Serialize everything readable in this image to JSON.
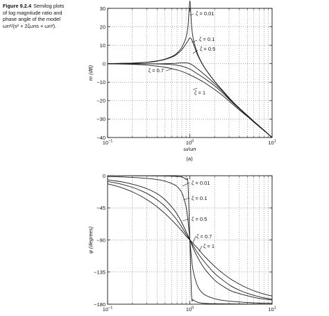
{
  "caption": {
    "figure": "Figure 9.2.4",
    "line1": "Semilog plots",
    "line2": "of log magnitude ratio and",
    "line3": "phase angle of the model",
    "line4": "ωn²/(s² + 2ζωns + ωn²)."
  },
  "chart_data": [
    {
      "type": "line",
      "panel_label": "(a)",
      "xlabel": "ω/ωn",
      "ylabel": "m (dB)",
      "x_scale": "log",
      "xlim": [
        0.1,
        10
      ],
      "ylim": [
        -40,
        30
      ],
      "x_ticks": [
        {
          "value": 0.1,
          "base": "10",
          "exp": "−1"
        },
        {
          "value": 1,
          "base": "10",
          "exp": "0"
        },
        {
          "value": 10,
          "base": "10",
          "exp": "1"
        }
      ],
      "y_ticks": [
        30,
        20,
        10,
        0,
        -10,
        -20,
        -30,
        -40
      ],
      "y_tick_labels": [
        "30",
        "20",
        "10",
        "0",
        "−10",
        "−20",
        "−30",
        "−40"
      ],
      "grid": "dotted",
      "x": [
        0.1,
        0.126,
        0.158,
        0.2,
        0.251,
        0.316,
        0.398,
        0.5,
        0.631,
        0.7,
        0.8,
        0.9,
        0.95,
        1.0,
        1.05,
        1.1,
        1.25,
        1.5,
        2.0,
        2.5,
        3.16,
        4.0,
        5.0,
        6.31,
        7.94,
        10.0
      ],
      "series": [
        {
          "name": "ζ = 0.01",
          "values": [
            0.09,
            0.14,
            0.22,
            0.35,
            0.56,
            0.91,
            1.5,
            2.5,
            4.3,
            5.8,
            8.9,
            14.4,
            20.1,
            33.98,
            20.8,
            13.6,
            5.1,
            -1.9,
            -9.5,
            -14.5,
            -19.6,
            -24.1,
            -28.0,
            -32.1,
            -36.0,
            -40.0
          ]
        },
        {
          "name": "ζ = 0.1",
          "values": [
            0.08,
            0.12,
            0.19,
            0.31,
            0.5,
            0.81,
            1.35,
            2.3,
            3.9,
            5.2,
            7.6,
            10.8,
            12.5,
            13.98,
            13.2,
            11.0,
            4.5,
            -2.0,
            -9.6,
            -14.5,
            -19.6,
            -24.1,
            -28.0,
            -32.1,
            -36.0,
            -40.0
          ]
        },
        {
          "name": "ζ = 0.5",
          "values": [
            0.0,
            -0.01,
            -0.01,
            -0.01,
            -0.02,
            -0.02,
            -0.02,
            0.0,
            0.15,
            0.3,
            0.47,
            0.48,
            0.35,
            0.0,
            -0.5,
            -1.0,
            -2.9,
            -5.8,
            -10.8,
            -15.0,
            -19.9,
            -24.2,
            -28.1,
            -32.1,
            -36.0,
            -40.0
          ]
        },
        {
          "name": "ζ = 0.7",
          "values": [
            -0.0,
            -0.0,
            -0.0,
            -0.01,
            -0.02,
            -0.05,
            -0.11,
            -0.24,
            -0.57,
            -0.84,
            -1.35,
            -2.1,
            -2.5,
            -2.92,
            -3.4,
            -4.0,
            -5.6,
            -7.9,
            -12.0,
            -15.8,
            -20.3,
            -24.5,
            -28.3,
            -32.2,
            -36.1,
            -40.0
          ]
        },
        {
          "name": "ζ = 1",
          "values": [
            -0.09,
            -0.14,
            -0.21,
            -0.34,
            -0.52,
            -0.83,
            -1.3,
            -1.94,
            -2.89,
            -3.4,
            -4.2,
            -5.1,
            -5.6,
            -6.02,
            -6.5,
            -6.9,
            -8.2,
            -10.2,
            -13.98,
            -17.2,
            -21.2,
            -25.1,
            -28.6,
            -32.5,
            -36.2,
            -40.0
          ]
        }
      ],
      "annotations": [
        "ζ = 0.01",
        "ζ = 0.1",
        "ζ = 0.5",
        "ζ = 0.7",
        "ζ = 1"
      ]
    },
    {
      "type": "line",
      "xlabel": "",
      "ylabel": "φ (degrees)",
      "x_scale": "log",
      "xlim": [
        0.1,
        10
      ],
      "ylim": [
        -180,
        0
      ],
      "x_ticks": [
        {
          "value": 0.1,
          "base": "10",
          "exp": "−1"
        },
        {
          "value": 1,
          "base": "10",
          "exp": "0"
        },
        {
          "value": 10,
          "base": "10",
          "exp": "1"
        }
      ],
      "y_ticks": [
        0,
        -45,
        -90,
        -135,
        -180
      ],
      "y_tick_labels": [
        "0",
        "−45",
        "−90",
        "−135",
        "−180"
      ],
      "grid": "dotted",
      "x": [
        0.1,
        0.126,
        0.158,
        0.2,
        0.251,
        0.316,
        0.398,
        0.5,
        0.631,
        0.7,
        0.8,
        0.9,
        0.95,
        1.0,
        1.05,
        1.1,
        1.25,
        1.5,
        2.0,
        2.5,
        3.16,
        4.0,
        5.0,
        6.31,
        7.94,
        10.0
      ],
      "series": [
        {
          "name": "ζ = 0.01",
          "values": [
            -0.1,
            -0.1,
            -0.1,
            -0.1,
            -0.2,
            -0.2,
            -0.3,
            -0.4,
            -0.8,
            -1.1,
            -1.8,
            -5.4,
            -11.1,
            -90,
            -168.3,
            -173.9,
            -177.4,
            -178.9,
            -179.4,
            -179.5,
            -179.6,
            -179.7,
            -179.8,
            -179.8,
            -179.9,
            -179.9
          ]
        },
        {
          "name": "ζ = 0.1",
          "values": [
            -1.2,
            -1.4,
            -1.8,
            -2.4,
            -3.1,
            -4.0,
            -5.4,
            -7.6,
            -11.9,
            -15.3,
            -23.9,
            -43.5,
            -62.8,
            -90,
            -116.0,
            -133.6,
            -155.2,
            -166.4,
            -172.4,
            -174.6,
            -175.9,
            -176.9,
            -177.6,
            -178.2,
            -178.6,
            -178.8
          ]
        },
        {
          "name": "ζ = 0.5",
          "values": [
            -5.8,
            -7.3,
            -9.2,
            -11.8,
            -15.0,
            -19.2,
            -25.1,
            -33.7,
            -46.5,
            -53.9,
            -65.8,
            -78.1,
            -84.0,
            -90,
            -95.9,
            -101.6,
            -114.8,
            -129.8,
            -146.3,
            -154.5,
            -161.3,
            -165.1,
            -168.2,
            -170.9,
            -172.8,
            -174.2
          ]
        },
        {
          "name": "ζ = 0.7",
          "values": [
            -8.1,
            -10.2,
            -12.8,
            -16.3,
            -20.6,
            -26.2,
            -33.6,
            -43.0,
            -55.7,
            -62.3,
            -72.1,
            -81.8,
            -86.1,
            -90,
            -94.3,
            -98.3,
            -108.4,
            -120.5,
            -136.8,
            -146.0,
            -154.4,
            -160.4,
            -164.7,
            -168.3,
            -171.1,
            -172.9
          ]
        },
        {
          "name": "ζ = 1",
          "values": [
            -11.4,
            -14.3,
            -17.9,
            -22.6,
            -28.2,
            -35.2,
            -43.4,
            -53.1,
            -64.5,
            -69.9,
            -77.3,
            -84.5,
            -87.4,
            -90,
            -92.4,
            -95.2,
            -101.9,
            -112.6,
            -126.9,
            -136.4,
            -145.0,
            -151.9,
            -157.4,
            -162.1,
            -165.7,
            -168.6
          ]
        }
      ],
      "annotations": [
        "ζ = 0.01",
        "ζ = 0.1",
        "ζ = 0.5",
        "ζ = 0.7",
        "ζ = 1"
      ]
    }
  ]
}
